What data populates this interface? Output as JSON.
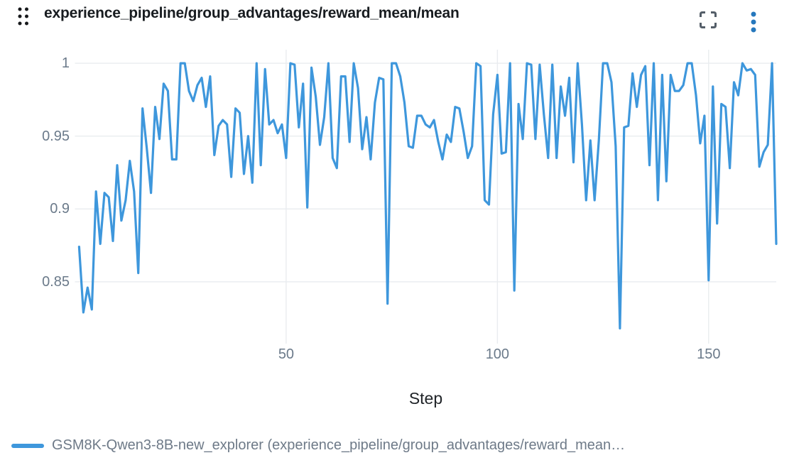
{
  "header": {
    "title": "experience_pipeline/group_advantages/reward_mean/mean",
    "icons": {
      "drag_handle": "drag-handle-icon (six dots)",
      "fullscreen": "fullscreen-expand-icon (corner brackets)",
      "menu": "kebab-menu-icon (three vertical dots)"
    }
  },
  "colors": {
    "line": "#3e97dc",
    "grid": "#e9ecef",
    "tick_text": "#6b7a8a",
    "title_text": "#181c20",
    "axis_label_text": "#212529",
    "legend_text": "#6e7a88",
    "menu_icon": "#2678bd",
    "fullscreen_icon": "#545e68",
    "handle_icon": "#17191c",
    "background": "#ffffff"
  },
  "chart_data": {
    "type": "line",
    "title": "experience_pipeline/group_advantages/reward_mean/mean",
    "xlabel": "Step",
    "ylabel": "",
    "grid": true,
    "legend_position": "bottom",
    "xlim": [
      0,
      166
    ],
    "ylim": [
      0.809,
      1.0093
    ],
    "xticks": [
      50,
      100,
      150
    ],
    "xtick_labels": [
      "50",
      "100",
      "150"
    ],
    "yticks": [
      1,
      0.95,
      0.9,
      0.85
    ],
    "ytick_labels": [
      "1",
      "0.95",
      "0.9",
      "0.85"
    ],
    "x_start": 1,
    "x_step": 1,
    "series": [
      {
        "name": "GSM8K-Qwen3-8B-new_explorer (experience_pipeline/group_advantages/reward_mean…",
        "color": "#3e97dc",
        "values": [
          0.874,
          0.829,
          0.846,
          0.831,
          0.912,
          0.876,
          0.911,
          0.908,
          0.878,
          0.93,
          0.892,
          0.906,
          0.933,
          0.912,
          0.856,
          0.969,
          0.942,
          0.911,
          0.97,
          0.948,
          0.986,
          0.981,
          0.934,
          0.934,
          1.0,
          1.0,
          0.981,
          0.974,
          0.985,
          0.99,
          0.97,
          0.991,
          0.937,
          0.957,
          0.961,
          0.958,
          0.922,
          0.969,
          0.966,
          0.924,
          0.95,
          0.918,
          1.0,
          0.93,
          0.996,
          0.958,
          0.961,
          0.952,
          0.958,
          0.935,
          1.0,
          0.999,
          0.956,
          0.986,
          0.901,
          0.997,
          0.977,
          0.944,
          0.963,
          1.0,
          0.935,
          0.928,
          0.991,
          0.991,
          0.946,
          1.0,
          0.983,
          0.941,
          0.963,
          0.934,
          0.973,
          0.99,
          0.989,
          0.835,
          1.0,
          1.0,
          0.991,
          0.973,
          0.943,
          0.942,
          0.964,
          0.964,
          0.958,
          0.956,
          0.961,
          0.946,
          0.934,
          0.951,
          0.946,
          0.97,
          0.969,
          0.953,
          0.935,
          0.943,
          1.0,
          0.998,
          0.906,
          0.903,
          0.965,
          0.992,
          0.938,
          0.939,
          1.0,
          0.844,
          0.972,
          0.948,
          1.0,
          0.999,
          0.948,
          0.999,
          0.965,
          0.935,
          0.999,
          0.935,
          0.984,
          0.964,
          0.99,
          0.932,
          1.0,
          0.958,
          0.906,
          0.947,
          0.906,
          0.947,
          1.0,
          1.0,
          0.987,
          0.943,
          0.818,
          0.956,
          0.957,
          0.993,
          0.97,
          0.992,
          0.998,
          0.93,
          1.0,
          0.906,
          0.992,
          0.919,
          0.992,
          0.981,
          0.981,
          0.985,
          1.0,
          1.0,
          0.978,
          0.945,
          0.964,
          0.851,
          0.984,
          0.89,
          0.972,
          0.97,
          0.928,
          0.987,
          0.978,
          1.0,
          0.995,
          0.996,
          0.992,
          0.929,
          0.939,
          0.944,
          1.0,
          0.876
        ]
      }
    ]
  },
  "legend": {
    "items": [
      {
        "label": "GSM8K-Qwen3-8B-new_explorer (experience_pipeline/group_advantages/reward_mean…"
      }
    ]
  }
}
